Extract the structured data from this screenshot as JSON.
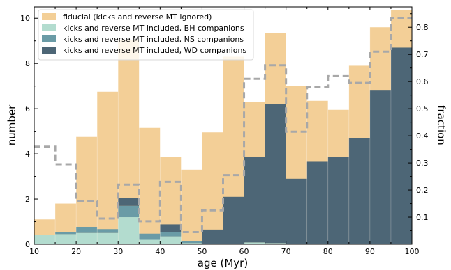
{
  "chart_data": {
    "type": "bar",
    "xlabel": "age (Myr)",
    "ylabel": "number",
    "y2label": "fraction",
    "xlim": [
      10,
      100
    ],
    "ylim": [
      0,
      10.5
    ],
    "y2lim": [
      0,
      0.875
    ],
    "x_ticks": [
      10,
      20,
      30,
      40,
      50,
      60,
      70,
      80,
      90,
      100
    ],
    "y_ticks": [
      0,
      2,
      4,
      6,
      8,
      10
    ],
    "y2_ticks": [
      0.1,
      0.2,
      0.3,
      0.4,
      0.5,
      0.6,
      0.7,
      0.8
    ],
    "bin_edges": [
      10,
      15,
      20,
      25,
      30,
      35,
      40,
      45,
      50,
      55,
      60,
      65,
      70,
      75,
      80,
      85,
      90,
      95,
      100
    ],
    "series": [
      {
        "name": "fiducial (kicks and reverse MT ignored)",
        "color": "#f3cf97",
        "values": [
          1.1,
          1.8,
          4.75,
          6.75,
          9.05,
          5.15,
          3.85,
          3.3,
          4.95,
          8.3,
          6.3,
          9.35,
          7.0,
          6.35,
          5.95,
          7.9,
          9.6,
          10.35
        ]
      },
      {
        "name": "kicks and reverse MT included, BH companions",
        "color": "#b3dccf",
        "values": [
          0.4,
          0.45,
          0.5,
          0.5,
          1.2,
          0.2,
          0.35,
          0.05,
          0.0,
          0.0,
          0.08,
          0.05,
          0.0,
          0.0,
          0.0,
          0.0,
          0.0,
          0.0
        ]
      },
      {
        "name": "kicks and reverse MT included, NS companions",
        "color": "#6a9ba6",
        "values": [
          0.0,
          0.1,
          0.27,
          0.17,
          0.5,
          0.27,
          0.18,
          0.1,
          0.0,
          0.0,
          0.0,
          0.0,
          0.0,
          0.0,
          0.0,
          0.0,
          0.0,
          0.0
        ]
      },
      {
        "name": "kicks and reverse MT included, WD companions",
        "color": "#4d6676",
        "values": [
          0.0,
          0.0,
          0.0,
          0.0,
          0.35,
          0.0,
          0.35,
          0.0,
          0.65,
          2.1,
          3.8,
          6.15,
          2.9,
          3.65,
          3.85,
          4.7,
          6.8,
          8.7
        ]
      }
    ],
    "fraction_series": {
      "color": "#a8a8a8",
      "style": "dashed-step",
      "values": [
        0.36,
        0.295,
        0.16,
        0.095,
        0.22,
        0.085,
        0.23,
        0.045,
        0.125,
        0.255,
        0.61,
        0.66,
        0.415,
        0.58,
        0.62,
        0.595,
        0.71,
        0.835
      ]
    },
    "legend_position": "top-left"
  }
}
